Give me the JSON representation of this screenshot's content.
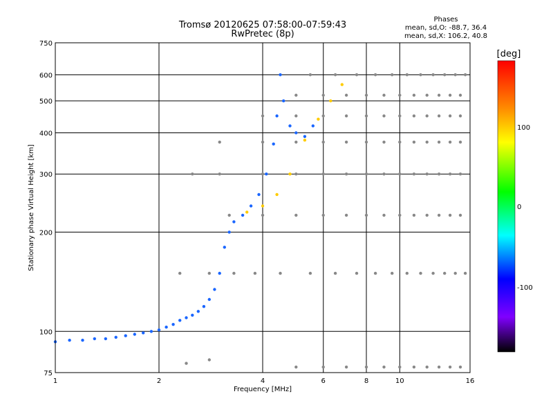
{
  "chart_data": {
    "type": "scatter",
    "title": "Tromsø 20120625 07:58:00-07:59:43",
    "subtitle": "RwPretec (8p)",
    "xlabel": "Frequency [MHz]",
    "ylabel": "Stationary phase Virtual Height [km]",
    "x_scale": "log",
    "y_scale": "log",
    "xlim": [
      1,
      16
    ],
    "ylim": [
      75,
      750
    ],
    "x_ticks": [
      "1",
      "2",
      "4",
      "6",
      "8",
      "10",
      "16"
    ],
    "y_ticks": [
      "75",
      "100",
      "200",
      "300",
      "400",
      "500",
      "600",
      "750"
    ],
    "grid": true,
    "stats": {
      "heading": "Phases",
      "o_mode": "mean, sd,O: -88.7, 36.4",
      "x_mode": "mean, sd,X: 106.2, 40.8"
    },
    "colorbar": {
      "label": "[deg]",
      "ticks": [
        "100",
        "0",
        "-100"
      ],
      "colors": [
        "#ff0000",
        "#ff8800",
        "#ffff00",
        "#00ff00",
        "#00ffff",
        "#0000ff",
        "#8000ff",
        "#000000"
      ]
    },
    "series": [
      {
        "color": "#1a66ff",
        "x": [
          1.0,
          1.1,
          1.2,
          1.3,
          1.4,
          1.5,
          1.6,
          1.7,
          1.8,
          1.9,
          2.0,
          2.1,
          2.2,
          2.3,
          2.4,
          2.5,
          2.6,
          2.7,
          2.8,
          2.9,
          3.0,
          3.1,
          3.2,
          3.3,
          3.5,
          3.7,
          3.9,
          4.1,
          4.3,
          4.4,
          4.5,
          4.6,
          4.8,
          5.0,
          5.3,
          5.6
        ],
        "y": [
          93,
          94,
          94,
          95,
          95,
          96,
          97,
          98,
          99,
          100,
          101,
          103,
          105,
          108,
          110,
          112,
          115,
          119,
          125,
          134,
          150,
          180,
          200,
          215,
          225,
          240,
          260,
          300,
          370,
          450,
          600,
          500,
          420,
          400,
          390,
          420
        ]
      },
      {
        "color": "#ffcc00",
        "x": [
          3.6,
          4.0,
          4.4,
          4.8,
          5.3,
          5.8,
          6.3,
          6.8
        ],
        "y": [
          230,
          240,
          260,
          300,
          380,
          440,
          500,
          560
        ]
      },
      {
        "color": "#888888",
        "x": [
          5.5,
          6.5,
          7.5,
          8.5,
          9.5,
          10.5,
          11.5,
          12.5,
          13.5,
          14.5,
          15.5
        ],
        "y": [
          600,
          600,
          600,
          600,
          600,
          600,
          600,
          600,
          600,
          600,
          600
        ]
      },
      {
        "color": "#888888",
        "x": [
          5.0,
          6.0,
          7.0,
          8.0,
          9.0,
          10.0,
          11.0,
          12.0,
          13.0,
          14.0,
          15.0
        ],
        "y": [
          520,
          520,
          520,
          520,
          520,
          520,
          520,
          520,
          520,
          520,
          520
        ]
      },
      {
        "color": "#888888",
        "x": [
          4.0,
          5.0,
          6.0,
          7.0,
          8.0,
          9.0,
          10.0,
          11.0,
          12.0,
          13.0,
          14.0,
          15.0
        ],
        "y": [
          450,
          450,
          450,
          450,
          450,
          450,
          450,
          450,
          450,
          450,
          450,
          450
        ]
      },
      {
        "color": "#888888",
        "x": [
          3.0,
          4.0,
          5.0,
          6.0,
          7.0,
          8.0,
          9.0,
          10.0,
          11.0,
          12.0,
          13.0,
          14.0,
          15.0
        ],
        "y": [
          375,
          375,
          375,
          375,
          375,
          375,
          375,
          375,
          375,
          375,
          375,
          375,
          375
        ]
      },
      {
        "color": "#888888",
        "x": [
          2.5,
          3.0,
          4.0,
          5.0,
          6.0,
          7.0,
          8.0,
          9.0,
          10.0,
          11.0,
          12.0,
          13.0,
          14.0,
          15.0
        ],
        "y": [
          300,
          300,
          300,
          300,
          300,
          300,
          300,
          300,
          300,
          300,
          300,
          300,
          300,
          300
        ]
      },
      {
        "color": "#888888",
        "x": [
          3.2,
          4.0,
          5.0,
          6.0,
          7.0,
          8.0,
          9.0,
          10.0,
          11.0,
          12.0,
          13.0,
          14.0,
          15.0
        ],
        "y": [
          225,
          225,
          225,
          225,
          225,
          225,
          225,
          225,
          225,
          225,
          225,
          225,
          225
        ]
      },
      {
        "color": "#888888",
        "x": [
          2.3,
          2.8,
          3.3,
          3.8,
          4.5,
          5.5,
          6.5,
          7.5,
          8.5,
          9.5,
          10.5,
          11.5,
          12.5,
          13.5,
          14.5,
          15.5
        ],
        "y": [
          150,
          150,
          150,
          150,
          150,
          150,
          150,
          150,
          150,
          150,
          150,
          150,
          150,
          150,
          150,
          150
        ]
      },
      {
        "color": "#888888",
        "x": [
          2.4,
          2.8,
          5.0,
          6.0,
          7.0,
          8.0,
          9.0,
          10.0,
          11.0,
          12.0,
          13.0,
          14.0,
          15.0
        ],
        "y": [
          80,
          82,
          78,
          78,
          78,
          78,
          78,
          78,
          78,
          78,
          78,
          78,
          78
        ]
      }
    ]
  }
}
